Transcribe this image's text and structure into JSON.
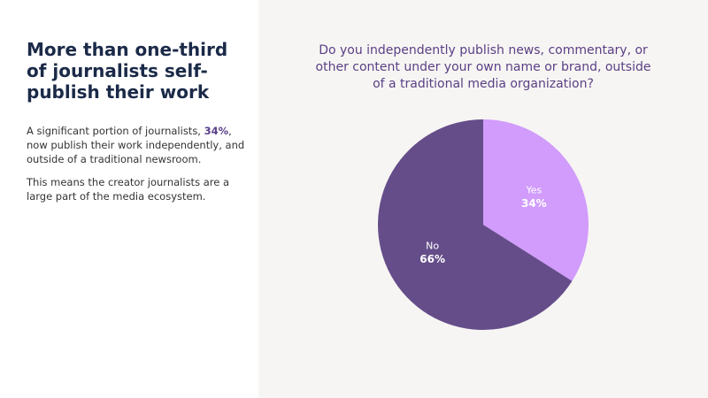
{
  "panel": {
    "title": "More than one-third of journalists self-publish their work",
    "paragraph_1": [
      "A significant portion of journalists, ",
      "34%",
      ", now publish their work independently, and outside of a traditional newsroom."
    ],
    "paragraph_2": "This means the creator journalists are a large part of the media ecosystem."
  },
  "chart_data": {
    "type": "pie",
    "title": "Do you independently publish news, commentary, or other content under your own name or brand, outside of a traditional media organization?",
    "categories": [
      "Yes",
      "No"
    ],
    "values": [
      34,
      66
    ],
    "value_labels": [
      "34%",
      "66%"
    ],
    "colors": [
      "#d19cfc",
      "#654d8a"
    ]
  }
}
